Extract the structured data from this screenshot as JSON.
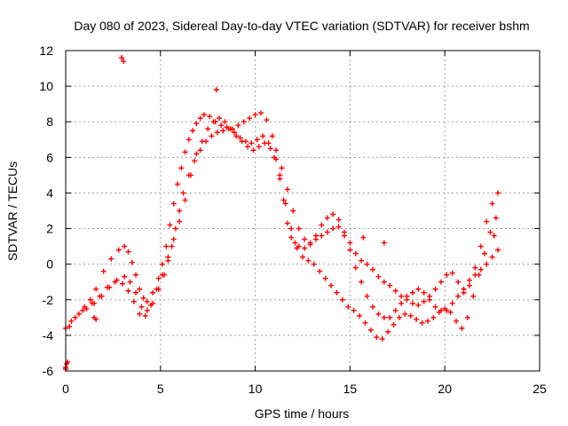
{
  "chart_data": {
    "type": "scatter",
    "title": "Day 080 of 2023, Sidereal Day-to-day VTEC variation (SDTVAR) for receiver bshm",
    "xlabel": "GPS time / hours",
    "ylabel": "SDTVAR / TECUs",
    "xlim": [
      0,
      25
    ],
    "ylim": [
      -6,
      12
    ],
    "xticks": [
      0,
      5,
      10,
      15,
      20,
      25
    ],
    "yticks": [
      -6,
      -4,
      -2,
      0,
      2,
      4,
      6,
      8,
      10,
      12
    ],
    "grid": true,
    "marker": "+",
    "series_color": "#ff0000",
    "series": [
      {
        "name": "track-a",
        "x": [
          0.0,
          0.2,
          0.5,
          0.9,
          1.3,
          1.6,
          2.0,
          2.4,
          2.8,
          3.1,
          3.3,
          3.5,
          3.7,
          3.9,
          4.1,
          4.3,
          4.6,
          4.9,
          5.1,
          5.3,
          5.5,
          5.7,
          5.9,
          6.1,
          6.3,
          6.5,
          6.7,
          6.9,
          7.1,
          7.3,
          7.6,
          7.9,
          8.2,
          8.5,
          8.8,
          9.1,
          9.4,
          9.7,
          10.0,
          10.3,
          10.6,
          10.9,
          11.1,
          11.3,
          11.5,
          11.7,
          11.9,
          12.1,
          12.3,
          12.6,
          12.9,
          13.2,
          13.5,
          13.8,
          14.1,
          14.4,
          14.7,
          15.0,
          15.3,
          15.6,
          15.9,
          16.2,
          16.5,
          16.8,
          17.1,
          17.4,
          17.7,
          18.0,
          18.3,
          18.6,
          18.9,
          19.2,
          19.5,
          19.8,
          20.1,
          20.4,
          20.7,
          21.0,
          21.3,
          21.6,
          21.9,
          22.2,
          22.5,
          22.8
        ],
        "y": [
          -5.8,
          -3.5,
          -3.0,
          -2.6,
          -2.0,
          -1.4,
          -0.4,
          0.3,
          0.8,
          1.0,
          0.7,
          0.1,
          -0.6,
          -1.4,
          -1.9,
          -2.1,
          -1.6,
          -0.8,
          0.0,
          1.0,
          2.2,
          3.4,
          4.5,
          5.4,
          6.3,
          7.0,
          7.5,
          7.9,
          8.2,
          8.4,
          8.3,
          8.0,
          7.8,
          7.7,
          7.6,
          7.8,
          8.0,
          8.2,
          8.4,
          8.5,
          8.1,
          7.2,
          6.4,
          5.0,
          3.6,
          2.3,
          1.5,
          1.2,
          1.0,
          0.9,
          1.1,
          1.4,
          1.6,
          1.8,
          2.0,
          2.1,
          1.8,
          1.2,
          0.6,
          0.2,
          0.0,
          -0.3,
          -0.7,
          -1.0,
          -1.2,
          -1.5,
          -1.8,
          -2.0,
          -2.2,
          -2.3,
          -2.1,
          -1.8,
          -1.4,
          -1.0,
          -0.6,
          -0.5,
          -1.0,
          -1.6,
          -1.2,
          -0.2,
          1.0,
          2.4,
          3.4,
          4.0
        ]
      },
      {
        "name": "track-b",
        "x": [
          0.0,
          0.3,
          0.7,
          1.1,
          1.5,
          1.9,
          2.3,
          2.7,
          3.1,
          3.4,
          3.7,
          4.0,
          4.3,
          4.6,
          4.9,
          5.2,
          5.4,
          5.6,
          5.8,
          6.0,
          6.2,
          6.5,
          6.8,
          7.1,
          7.4,
          7.7,
          8.0,
          8.3,
          8.6,
          8.9,
          9.2,
          9.5,
          9.8,
          10.1,
          10.4,
          10.7,
          11.0,
          11.3,
          11.6,
          11.9,
          12.2,
          12.5,
          12.8,
          13.1,
          13.4,
          13.7,
          14.0,
          14.3,
          14.6,
          14.9,
          15.2,
          15.5,
          15.8,
          16.1,
          16.4,
          16.7,
          17.0,
          17.3,
          17.6,
          17.9,
          18.2,
          18.5,
          18.8,
          19.1,
          19.4,
          19.7,
          20.0,
          20.3,
          20.6,
          20.9,
          21.2,
          21.5,
          21.8,
          22.1,
          22.4,
          22.7
        ],
        "y": [
          -3.6,
          -3.2,
          -2.8,
          -2.5,
          -2.2,
          -1.8,
          -1.3,
          -0.9,
          -0.7,
          -1.0,
          -1.6,
          -2.4,
          -2.6,
          -2.2,
          -1.4,
          -0.6,
          0.2,
          1.0,
          2.0,
          3.0,
          4.0,
          5.0,
          5.8,
          6.4,
          6.9,
          7.2,
          7.4,
          7.5,
          7.6,
          7.4,
          7.1,
          6.9,
          6.8,
          7.0,
          7.2,
          6.8,
          6.0,
          4.8,
          3.4,
          2.0,
          0.9,
          0.4,
          0.2,
          0.0,
          -0.4,
          -0.8,
          -1.2,
          -1.6,
          -2.0,
          -2.4,
          -2.6,
          -2.9,
          -3.3,
          -3.7,
          -4.1,
          -4.2,
          -3.8,
          -3.4,
          -3.0,
          -2.8,
          -2.9,
          -3.1,
          -3.3,
          -3.2,
          -3.0,
          -2.7,
          -2.5,
          -2.7,
          -3.2,
          -3.6,
          -3.0,
          -1.8,
          -0.6,
          0.6,
          1.8,
          2.6
        ]
      },
      {
        "name": "track-c",
        "x": [
          1.0,
          1.4,
          1.8,
          2.2,
          2.6,
          3.0,
          3.3,
          3.6,
          3.9,
          4.2,
          4.5,
          4.8,
          5.1,
          5.4,
          5.7,
          6.0,
          6.3,
          6.6,
          6.9,
          7.2,
          7.5,
          7.8,
          8.1,
          8.4,
          8.7,
          9.0,
          9.3,
          9.6,
          9.9,
          10.2,
          10.5,
          10.8,
          11.1,
          11.4,
          11.7,
          12.0,
          12.3,
          12.6,
          12.9,
          13.2,
          13.5,
          13.8,
          14.1,
          14.4,
          14.7,
          15.0,
          15.3,
          15.6,
          15.9,
          16.2,
          16.5,
          16.8,
          17.1,
          17.4,
          17.7,
          18.0,
          18.3,
          18.6,
          18.9,
          19.2,
          19.5,
          19.8,
          20.1,
          20.4,
          20.7,
          21.0,
          21.3,
          21.6,
          21.9,
          22.2,
          22.5,
          22.8
        ],
        "y": [
          -2.4,
          -2.2,
          -1.8,
          -1.3,
          -1.0,
          -1.1,
          -1.5,
          -2.1,
          -2.8,
          -2.9,
          -2.3,
          -1.4,
          -0.6,
          0.4,
          1.4,
          2.4,
          3.6,
          5.0,
          6.2,
          6.9,
          7.6,
          8.0,
          8.2,
          8.0,
          7.6,
          7.2,
          6.9,
          6.6,
          6.4,
          6.6,
          6.8,
          6.5,
          5.9,
          5.4,
          4.2,
          3.0,
          2.0,
          1.4,
          1.2,
          1.6,
          2.2,
          2.6,
          2.8,
          2.5,
          1.6,
          0.8,
          -0.2,
          -1.0,
          -1.8,
          -2.4,
          -2.8,
          -3.0,
          -3.0,
          -2.6,
          -2.2,
          -1.8,
          -1.6,
          -1.4,
          -1.6,
          -2.0,
          -2.4,
          -2.6,
          -2.6,
          -2.2,
          -1.8,
          -1.4,
          -0.9,
          -0.6,
          -0.3,
          0.0,
          0.4,
          0.8
        ]
      },
      {
        "name": "outliers",
        "x": [
          2.95,
          3.05,
          7.95,
          0.0,
          0.05,
          0.1,
          1.5,
          1.6,
          15.7,
          16.8,
          22.6
        ],
        "y": [
          11.6,
          11.4,
          9.8,
          -5.9,
          -5.6,
          -5.5,
          -3.0,
          -3.1,
          1.5,
          1.2,
          1.6
        ]
      }
    ]
  }
}
